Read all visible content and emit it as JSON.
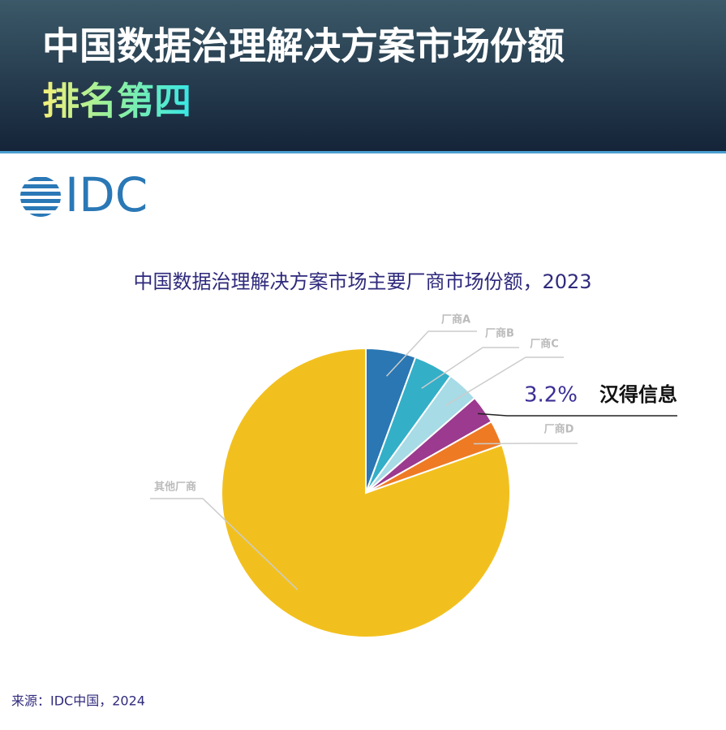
{
  "header": {
    "title": "中国数据治理解决方案市场份额",
    "subtitle": "排名第四"
  },
  "logo": "IDC",
  "chart_data": {
    "type": "pie",
    "title": "中国数据治理解决方案市场主要厂商市场份额，2023",
    "categories": [
      "厂商A",
      "厂商B",
      "厂商C",
      "汉得信息",
      "厂商D",
      "其他厂商"
    ],
    "values": [
      5.6,
      4.4,
      3.6,
      3.2,
      2.8,
      80.4
    ],
    "value_labels": [
      null,
      null,
      null,
      "3.2%",
      null,
      null
    ],
    "colors": [
      "#2a77b3",
      "#34afc8",
      "#a7dbe6",
      "#9b3a8e",
      "#ee7a24",
      "#f2c01e"
    ]
  },
  "source": "来源：IDC中国，2024"
}
